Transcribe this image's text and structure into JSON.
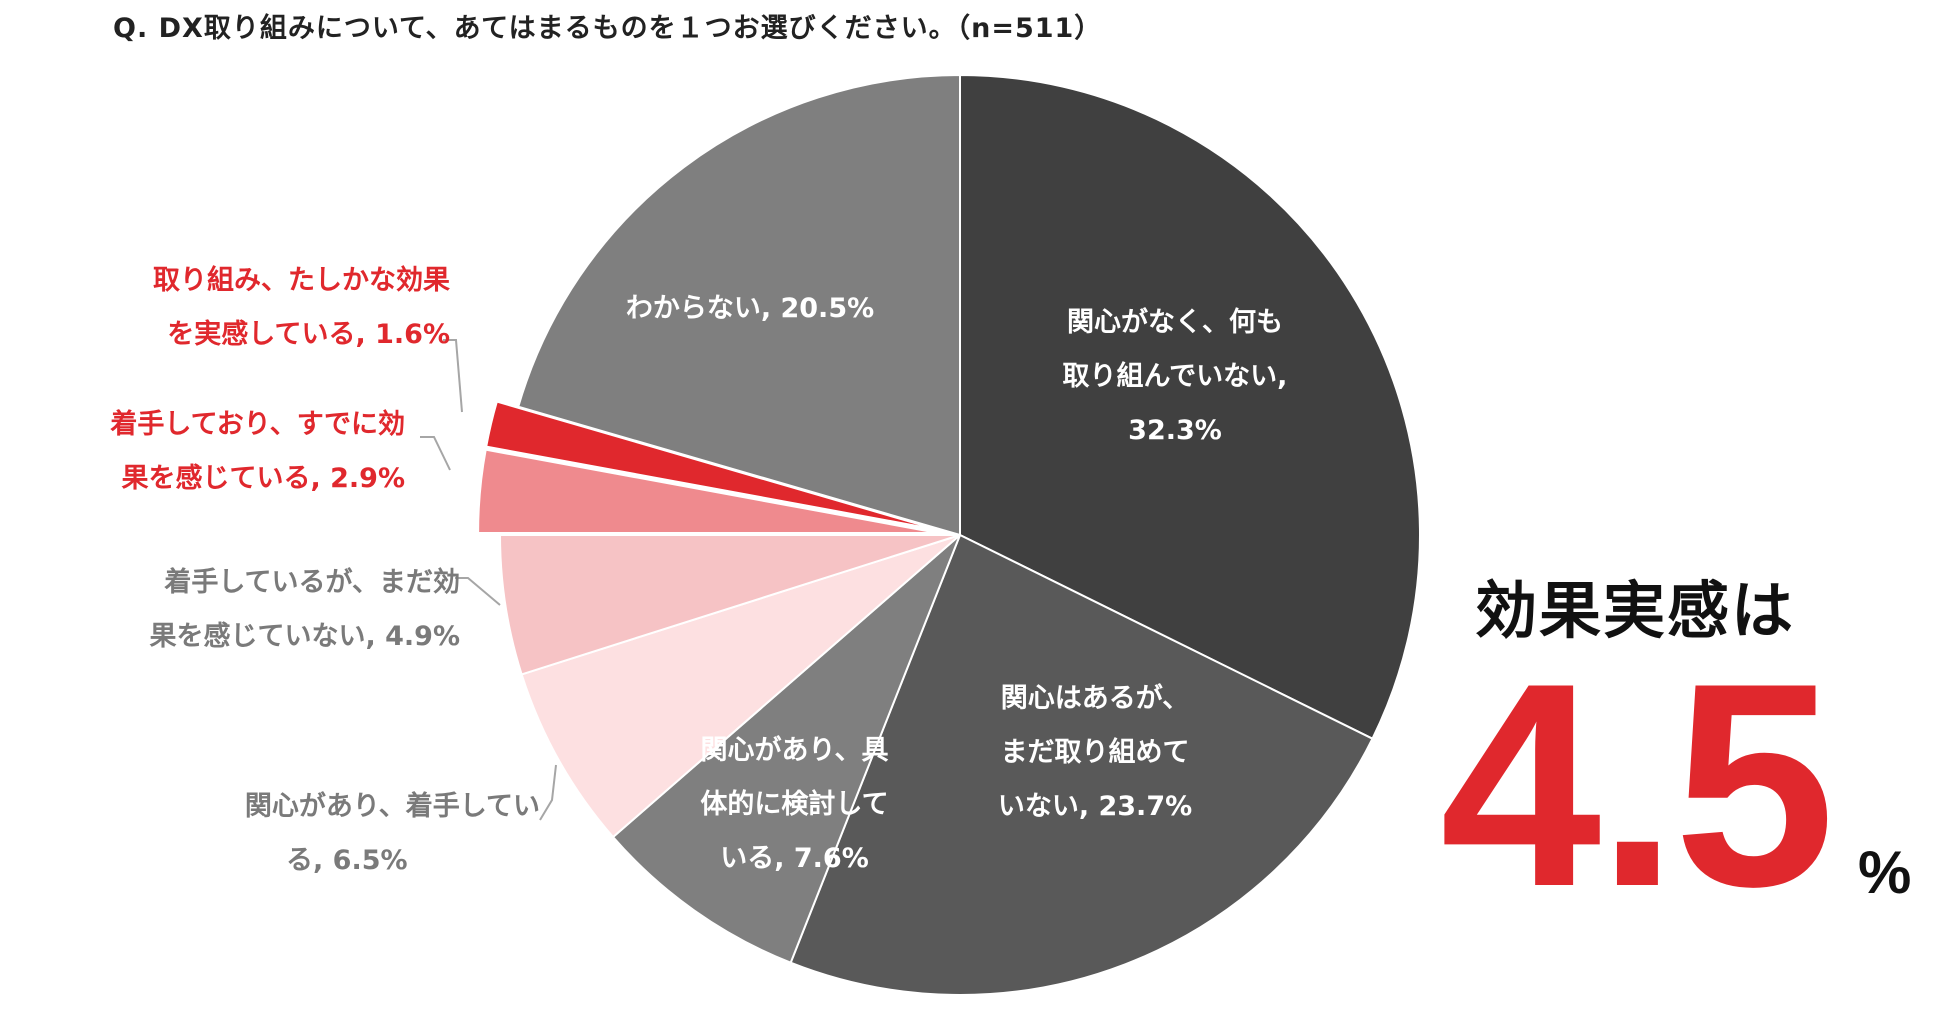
{
  "question": "Q. DX取り組みについて、あてはまるものを１つお選びください。（n=511）",
  "chart_data": {
    "type": "pie",
    "title": "Q. DX取り組みについて、あてはまるものを１つお選びください。（n=511）",
    "n": 511,
    "unit": "%",
    "start_angle": "12 o'clock, clockwise",
    "slices": [
      {
        "label_lines": [
          "関心がなく、何も",
          "取り組んでいない,",
          "32.3%"
        ],
        "category": "関心がなく、何も取り組んでいない",
        "value": 32.3,
        "color": "#404040",
        "label_color": "#ffffff",
        "exploded": false
      },
      {
        "label_lines": [
          "関心はあるが、",
          "まだ取り組めて",
          "いない, 23.7%"
        ],
        "category": "関心はあるが、まだ取り組めていない",
        "value": 23.7,
        "color": "#595959",
        "label_color": "#ffffff",
        "exploded": false
      },
      {
        "label_lines": [
          "関心があり、具",
          "体的に検討して",
          "いる, 7.6%"
        ],
        "category": "関心があり、具体的に検討している",
        "value": 7.6,
        "color": "#7f7f7f",
        "label_color": "#ffffff",
        "exploded": false
      },
      {
        "label_lines": [
          "関心があり、着手してい",
          "る, 6.5%"
        ],
        "category": "関心があり、着手している",
        "value": 6.5,
        "color": "#fde0e1",
        "label_color": "#7a7a7a",
        "exploded": false
      },
      {
        "label_lines": [
          "着手しているが、まだ効",
          "果を感じていない, 4.9%"
        ],
        "category": "着手しているが、まだ効果を感じていない",
        "value": 4.9,
        "color": "#f6c3c5",
        "label_color": "#7a7a7a",
        "exploded": false
      },
      {
        "label_lines": [
          "着手しており、すでに効",
          "果を感じている, 2.9%"
        ],
        "category": "着手しており、すでに効果を感じている",
        "value": 2.9,
        "color": "#ef8a8e",
        "label_color": "#e0282d",
        "exploded": true
      },
      {
        "label_lines": [
          "取り組み、たしかな効果",
          "を実感している, 1.6%"
        ],
        "category": "取り組み、たしかな効果を実感している",
        "value": 1.6,
        "color": "#e0282d",
        "label_color": "#e0282d",
        "exploded": true
      },
      {
        "label_lines": [
          "わからない, 20.5%"
        ],
        "category": "わからない",
        "value": 20.5,
        "color": "#7f7f7f",
        "label_color": "#ffffff",
        "exploded": false
      }
    ]
  },
  "highlight": {
    "title": "効果実感は",
    "value": "4.5",
    "unit": "%",
    "color": "#e0282d"
  }
}
